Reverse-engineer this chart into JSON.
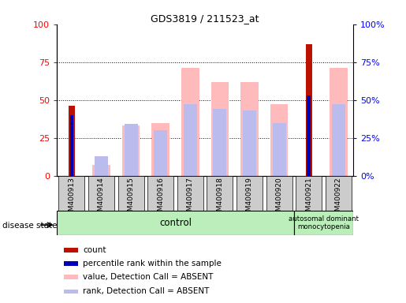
{
  "title": "GDS3819 / 211523_at",
  "samples": [
    "GSM400913",
    "GSM400914",
    "GSM400915",
    "GSM400916",
    "GSM400917",
    "GSM400918",
    "GSM400919",
    "GSM400920",
    "GSM400921",
    "GSM400922"
  ],
  "count": [
    46,
    0,
    0,
    0,
    0,
    0,
    0,
    0,
    87,
    0
  ],
  "percentile_rank": [
    40,
    0,
    0,
    0,
    0,
    0,
    0,
    0,
    53,
    0
  ],
  "value_absent": [
    0,
    7,
    33,
    35,
    71,
    62,
    62,
    47,
    0,
    71
  ],
  "rank_absent": [
    0,
    13,
    34,
    30,
    47,
    44,
    43,
    35,
    0,
    47
  ],
  "ylim": [
    0,
    100
  ],
  "yticks": [
    0,
    25,
    50,
    75,
    100
  ],
  "color_count": "#bb1100",
  "color_percentile": "#0000bb",
  "color_value_absent": "#ffbbbb",
  "color_rank_absent": "#bbbbee",
  "group_bg_color": "#bbeebb",
  "tick_bg_color": "#cccccc",
  "legend_items": [
    [
      "#bb1100",
      "count"
    ],
    [
      "#0000bb",
      "percentile rank within the sample"
    ],
    [
      "#ffbbbb",
      "value, Detection Call = ABSENT"
    ],
    [
      "#bbbbee",
      "rank, Detection Call = ABSENT"
    ]
  ]
}
